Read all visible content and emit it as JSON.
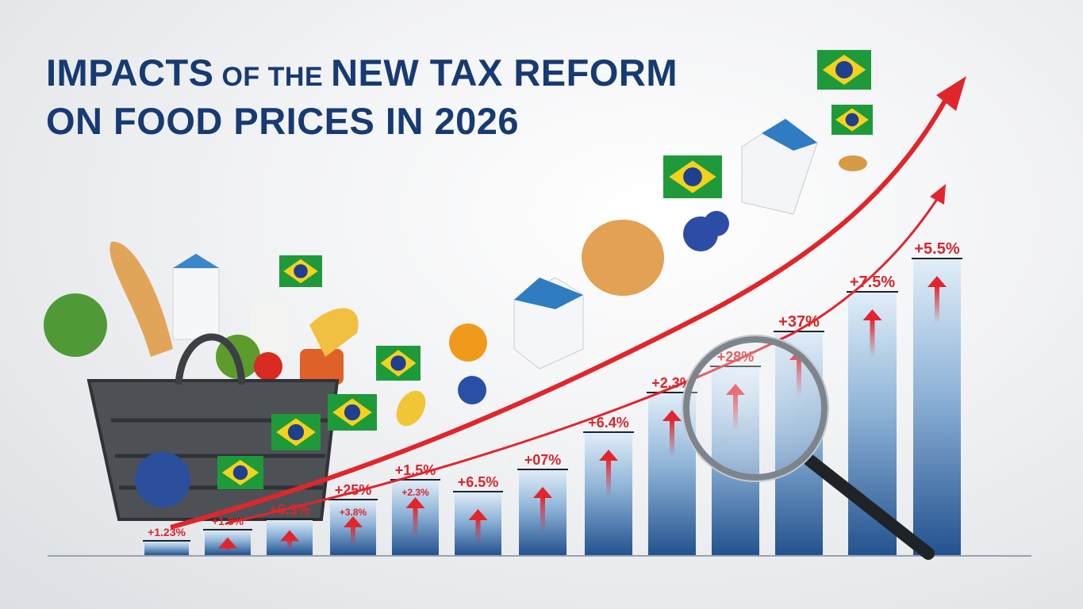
{
  "title": {
    "line1_a": "IMPACTS",
    "line1_b": " OF THE ",
    "line1_c": "NEW TAX REFORM",
    "line2": "ON FOOD PRICES IN 2026"
  },
  "colors": {
    "title": "#173a72",
    "bar_top": "#dbe9f5",
    "bar_bottom": "#2c5d98",
    "label": "#d8262c",
    "trend_line": "#e0262c"
  },
  "chart_data": {
    "type": "bar",
    "title": "IMPACTS OF THE NEW TAX REFORM ON FOOD PRICES IN 2026",
    "xlabel": "",
    "ylabel": "",
    "grid": false,
    "legend": "none",
    "bar_labels": [
      "+1.23%",
      "+1.8%",
      "+6.3%",
      "+25%",
      "+1.5%",
      "+6.5%",
      "+07%",
      "+6.4%",
      "+2.3%",
      "+28%",
      "+37%",
      "+7.5%",
      "+5.5%"
    ],
    "inner_labels": [
      "",
      "",
      "",
      "+3.8%",
      "+2.3%",
      "",
      "",
      "",
      "",
      "",
      "",
      "",
      ""
    ],
    "trend": "rising",
    "icons": [
      "shopping-basket-icon",
      "brazil-flag-icon",
      "magnifying-glass-icon",
      "up-arrow-icon",
      "milk-carton-icon",
      "bread-icon"
    ]
  }
}
